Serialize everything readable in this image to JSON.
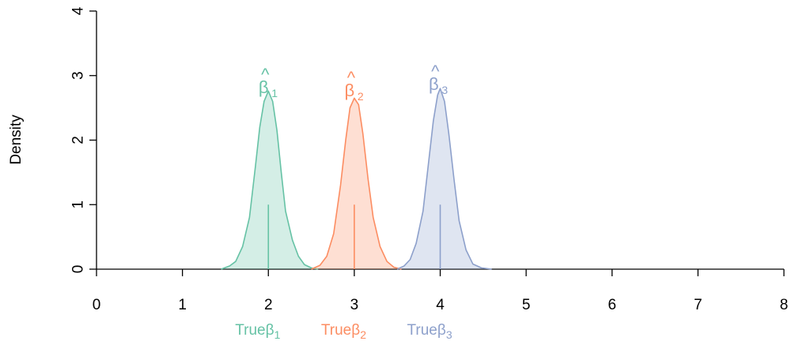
{
  "chart_data": {
    "type": "area",
    "title": "",
    "xlabel": "",
    "ylabel": "Density",
    "xlim": [
      0,
      8
    ],
    "ylim": [
      0,
      4
    ],
    "x_ticks": [
      "0",
      "1",
      "2",
      "3",
      "4",
      "5",
      "6",
      "7",
      "8"
    ],
    "y_ticks": [
      "0",
      "1",
      "2",
      "3",
      "4"
    ],
    "grid": false,
    "legend": "none",
    "series": [
      {
        "color": "#66c2a5",
        "estimate_label": {
          "base": "β",
          "hat": "^",
          "sub": "1"
        },
        "true_label": {
          "prefix": "True",
          "symbol": "β",
          "sub": "1"
        },
        "true_value": 2,
        "true_line_height": 1,
        "label_position": [
          2,
          2.9
        ],
        "x": [
          1.45,
          1.55,
          1.62,
          1.7,
          1.78,
          1.85,
          1.9,
          1.95,
          2.0,
          2.05,
          2.1,
          2.15,
          2.2,
          2.28,
          2.35,
          2.42,
          2.5,
          2.58
        ],
        "y": [
          0.0,
          0.05,
          0.12,
          0.35,
          0.8,
          1.6,
          2.2,
          2.6,
          2.76,
          2.6,
          2.15,
          1.5,
          0.9,
          0.45,
          0.2,
          0.07,
          0.02,
          0.0
        ]
      },
      {
        "color": "#fc8d62",
        "estimate_label": {
          "base": "β",
          "hat": "^",
          "sub": "2"
        },
        "true_label": {
          "prefix": "True",
          "symbol": "β",
          "sub": "2"
        },
        "true_value": 3,
        "true_line_height": 1,
        "label_position": [
          3,
          2.85
        ],
        "x": [
          2.5,
          2.6,
          2.68,
          2.76,
          2.84,
          2.9,
          2.95,
          3.0,
          3.05,
          3.1,
          3.16,
          3.22,
          3.3,
          3.38,
          3.46,
          3.55
        ],
        "y": [
          0.0,
          0.06,
          0.2,
          0.55,
          1.3,
          2.0,
          2.5,
          2.65,
          2.55,
          2.1,
          1.4,
          0.8,
          0.35,
          0.12,
          0.03,
          0.0
        ]
      },
      {
        "color": "#8da0cb",
        "estimate_label": {
          "base": "β",
          "hat": "^",
          "sub": "3"
        },
        "true_label": {
          "prefix": "True",
          "symbol": "β",
          "sub": "3"
        },
        "true_value": 4,
        "true_line_height": 1,
        "label_position": [
          3.98,
          2.95
        ],
        "x": [
          3.5,
          3.58,
          3.65,
          3.72,
          3.8,
          3.86,
          3.92,
          3.97,
          4.0,
          4.05,
          4.1,
          4.16,
          4.22,
          4.3,
          4.38,
          4.48,
          4.6
        ],
        "y": [
          0.0,
          0.05,
          0.15,
          0.4,
          0.9,
          1.6,
          2.3,
          2.7,
          2.8,
          2.6,
          2.1,
          1.4,
          0.75,
          0.3,
          0.08,
          0.02,
          0.0
        ]
      }
    ]
  }
}
